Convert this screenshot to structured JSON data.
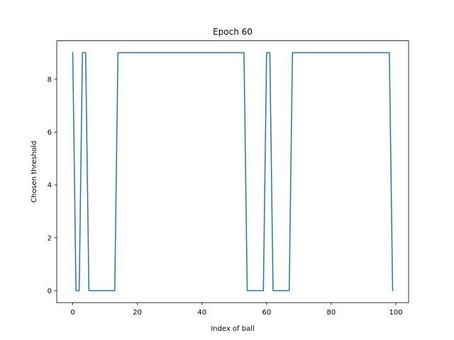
{
  "chart_data": {
    "type": "line",
    "title": "Epoch 60",
    "xlabel": "Index of ball",
    "ylabel": "Chosen threshold",
    "xlim": [
      -4.95,
      103.95
    ],
    "ylim": [
      -0.45,
      9.45
    ],
    "xticks": [
      0,
      20,
      40,
      60,
      80,
      100
    ],
    "yticks": [
      0,
      2,
      4,
      6,
      8
    ],
    "grid": false,
    "legend": "none",
    "series": [
      {
        "color": "#1f77b4",
        "x": [
          0,
          1,
          2,
          3,
          4,
          5,
          6,
          7,
          8,
          9,
          10,
          11,
          12,
          13,
          14,
          15,
          16,
          17,
          18,
          19,
          20,
          21,
          22,
          23,
          24,
          25,
          26,
          27,
          28,
          29,
          30,
          31,
          32,
          33,
          34,
          35,
          36,
          37,
          38,
          39,
          40,
          41,
          42,
          43,
          44,
          45,
          46,
          47,
          48,
          49,
          50,
          51,
          52,
          53,
          54,
          55,
          56,
          57,
          58,
          59,
          60,
          61,
          62,
          63,
          64,
          65,
          66,
          67,
          68,
          69,
          70,
          71,
          72,
          73,
          74,
          75,
          76,
          77,
          78,
          79,
          80,
          81,
          82,
          83,
          84,
          85,
          86,
          87,
          88,
          89,
          90,
          91,
          92,
          93,
          94,
          95,
          96,
          97,
          98,
          99
        ],
        "y": [
          9,
          0,
          0,
          9,
          9,
          0,
          0,
          0,
          0,
          0,
          0,
          0,
          0,
          0,
          9,
          9,
          9,
          9,
          9,
          9,
          9,
          9,
          9,
          9,
          9,
          9,
          9,
          9,
          9,
          9,
          9,
          9,
          9,
          9,
          9,
          9,
          9,
          9,
          9,
          9,
          9,
          9,
          9,
          9,
          9,
          9,
          9,
          9,
          9,
          9,
          9,
          9,
          9,
          9,
          0,
          0,
          0,
          0,
          0,
          0,
          9,
          9,
          0,
          0,
          0,
          0,
          0,
          0,
          9,
          9,
          9,
          9,
          9,
          9,
          9,
          9,
          9,
          9,
          9,
          9,
          9,
          9,
          9,
          9,
          9,
          9,
          9,
          9,
          9,
          9,
          9,
          9,
          9,
          9,
          9,
          9,
          9,
          9,
          9,
          0
        ]
      }
    ]
  }
}
